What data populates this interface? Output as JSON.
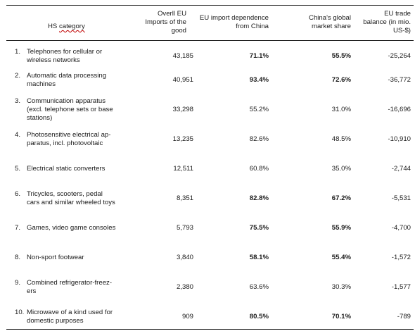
{
  "headers": {
    "category_a": "HS ",
    "category_b": "category",
    "imports": [
      "Overll EU",
      "Imports of the",
      "good"
    ],
    "dependence": [
      "EU import dependence",
      "from China"
    ],
    "share": [
      "China's global",
      "market share"
    ],
    "balance": [
      "EU trade",
      "balance (in mio.",
      "US-$)"
    ]
  },
  "rows": [
    {
      "num": "1.",
      "cat": [
        "Telephones for cellular or",
        "wireless networks"
      ],
      "imports": "43,185",
      "dep": "71.1%",
      "dep_bold": true,
      "share": "55.5%",
      "share_bold": true,
      "balance": "-25,264"
    },
    {
      "num": "2.",
      "cat": [
        "Automatic data processing",
        "machines"
      ],
      "imports": "40,951",
      "dep": "93.4%",
      "dep_bold": true,
      "share": "72.6%",
      "share_bold": true,
      "balance": "-36,772"
    },
    {
      "num": "3.",
      "cat": [
        "Communication apparatus",
        "(excl. telephone sets or base",
        "stations)"
      ],
      "imports": "33,298",
      "dep": "55.2%",
      "dep_bold": false,
      "share": "31.0%",
      "share_bold": false,
      "balance": "-16,696"
    },
    {
      "num": "4.",
      "cat": [
        "Photosensitive electrical ap-",
        "paratus, incl. photovoltaic"
      ],
      "imports": "13,235",
      "dep": "82.6%",
      "dep_bold": false,
      "share": "48.5%",
      "share_bold": false,
      "balance": "-10,910"
    },
    {
      "num": "5.",
      "cat": [
        "Electrical static converters"
      ],
      "imports": "12,511",
      "dep": "60.8%",
      "dep_bold": false,
      "share": "35.0%",
      "share_bold": false,
      "balance": "-2,744"
    },
    {
      "num": "6.",
      "cat": [
        "Tricycles, scooters, pedal",
        "cars and similar wheeled toys"
      ],
      "imports": "8,351",
      "dep": "82.8%",
      "dep_bold": true,
      "share": "67.2%",
      "share_bold": true,
      "balance": "-5,531"
    },
    {
      "num": "7.",
      "cat": [
        "Games, video game consoles"
      ],
      "imports": "5,793",
      "dep": "75.5%",
      "dep_bold": true,
      "share": "55.9%",
      "share_bold": true,
      "balance": "-4,700"
    },
    {
      "num": "8.",
      "cat": [
        "Non-sport footwear"
      ],
      "imports": "3,840",
      "dep": "58.1%",
      "dep_bold": true,
      "share": "55.4%",
      "share_bold": true,
      "balance": "-1,572"
    },
    {
      "num": "9.",
      "cat": [
        "Combined refrigerator-freez-",
        "ers"
      ],
      "imports": "2,380",
      "dep": "63.6%",
      "dep_bold": false,
      "share": "30.3%",
      "share_bold": false,
      "balance": "-1,577"
    },
    {
      "num": "10.",
      "cat": [
        "Microwave of a kind used for",
        "domestic purposes"
      ],
      "imports": "909",
      "dep": "80.5%",
      "dep_bold": true,
      "share": "70.1%",
      "share_bold": true,
      "balance": "-789"
    }
  ]
}
